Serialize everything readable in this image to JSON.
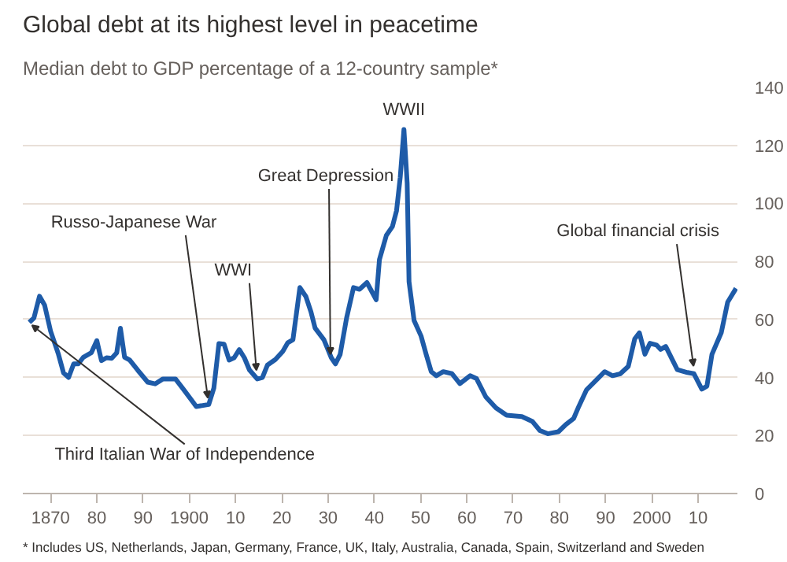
{
  "chart_data": {
    "type": "line",
    "title": "Global debt at its highest level in peacetime",
    "subtitle": "Median debt to GDP percentage of a 12-country sample*",
    "x": [
      1865.4,
      1866.4,
      1867.6,
      1868.7,
      1870,
      1871.7,
      1872.8,
      1873.9,
      1875,
      1876,
      1877.1,
      1878.8,
      1880,
      1881,
      1882.1,
      1883.2,
      1884.3,
      1885.1,
      1886,
      1887.1,
      1888.8,
      1891,
      1892.6,
      1894.3,
      1897,
      1898.7,
      1901.5,
      1904.2,
      1905.3,
      1906.4,
      1907.5,
      1908.6,
      1909.7,
      1910.8,
      1911.9,
      1913,
      1914.7,
      1915.8,
      1916.9,
      1918.6,
      1920.2,
      1921.3,
      1922.4,
      1923.9,
      1925.2,
      1926.3,
      1927.2,
      1929.1,
      1930.7,
      1931.6,
      1932.6,
      1934,
      1935.5,
      1936.8,
      1938.4,
      1940.4,
      1941.1,
      1942.6,
      1943.9,
      1944.8,
      1945.6,
      1946.4,
      1947.1,
      1947.5,
      1948.6,
      1950.1,
      1951.2,
      1952.3,
      1953.4,
      1954.9,
      1956.8,
      1958.5,
      1960.7,
      1962.1,
      1964.1,
      1966.3,
      1968.6,
      1971.9,
      1974.2,
      1975.8,
      1977.5,
      1979.8,
      1981.4,
      1983.1,
      1984.2,
      1985.9,
      1987.6,
      1989.8,
      1991.5,
      1993.2,
      1994.9,
      1996.3,
      1997.3,
      1998.5,
      1999.6,
      2001,
      2001.9,
      2003,
      2005.5,
      2007.7,
      2009.1,
      2010.8,
      2011.9,
      2013,
      2015,
      2016.4,
      2018.2
    ],
    "series": [
      {
        "color": "#1e5ba8",
        "values": [
          59,
          60.5,
          68,
          65,
          56,
          48,
          41.6,
          40,
          44.7,
          44.7,
          47,
          48.5,
          52.7,
          45.8,
          46.8,
          46.6,
          48.5,
          57,
          47,
          46,
          42.6,
          38.4,
          37.8,
          39.5,
          39.5,
          36,
          30,
          30.7,
          36.3,
          51.7,
          51.5,
          46,
          46.8,
          49.6,
          46.8,
          42.6,
          39.5,
          40,
          44.3,
          46.2,
          49,
          52,
          53,
          71,
          67.9,
          62.6,
          57,
          53,
          46.8,
          44.7,
          47.9,
          60.5,
          71,
          70.4,
          72.7,
          66.8,
          80.6,
          89,
          92,
          97.5,
          109,
          125.5,
          107,
          73,
          59.6,
          54.3,
          48,
          42,
          40.6,
          42,
          41.3,
          37.9,
          40.6,
          39.6,
          33.3,
          29.5,
          27,
          26.5,
          24.8,
          21.7,
          20.6,
          21.3,
          23.8,
          25.9,
          30,
          35.8,
          38.5,
          42,
          40.6,
          41.3,
          43.8,
          53.3,
          55.4,
          48,
          51.8,
          51.2,
          49.7,
          50.7,
          42.7,
          41.7,
          41.3,
          36,
          37,
          48,
          55.4,
          66,
          70.7
        ]
      }
    ],
    "xlim": [
      1864,
      2018.5
    ],
    "ylim": [
      0,
      140
    ],
    "xticks": [
      {
        "value": 1870,
        "label": "1870"
      },
      {
        "value": 1880,
        "label": "80"
      },
      {
        "value": 1890,
        "label": "90"
      },
      {
        "value": 1900,
        "label": "1900"
      },
      {
        "value": 1910,
        "label": "10"
      },
      {
        "value": 1920,
        "label": "20"
      },
      {
        "value": 1930,
        "label": "30"
      },
      {
        "value": 1940,
        "label": "40"
      },
      {
        "value": 1950,
        "label": "50"
      },
      {
        "value": 1960,
        "label": "60"
      },
      {
        "value": 1970,
        "label": "70"
      },
      {
        "value": 1980,
        "label": "80"
      },
      {
        "value": 1990,
        "label": "90"
      },
      {
        "value": 2000,
        "label": "2000"
      },
      {
        "value": 2010,
        "label": "10"
      }
    ],
    "yticks": [
      0,
      20,
      40,
      60,
      80,
      100,
      120,
      140
    ],
    "grid": "y",
    "marker": "none",
    "line_style": "solid",
    "annotations": [
      {
        "text": "Third Italian War of Independence",
        "x": 1866,
        "y": 60
      },
      {
        "text": "Russo-Japanese War",
        "x": 1904,
        "y": 31
      },
      {
        "text": "WWI",
        "x": 1914.5,
        "y": 40.5
      },
      {
        "text": "Great Depression",
        "x": 1930.5,
        "y": 46
      },
      {
        "text": "WWII",
        "x": 1946.4,
        "y": 126
      },
      {
        "text": "Global financial crisis",
        "x": 2009,
        "y": 42
      },
      "* Includes US, Netherlands, Japan, Germany, France, UK, Italy, Australia, Canada, Spain, Switzerland and Sweden"
    ]
  }
}
